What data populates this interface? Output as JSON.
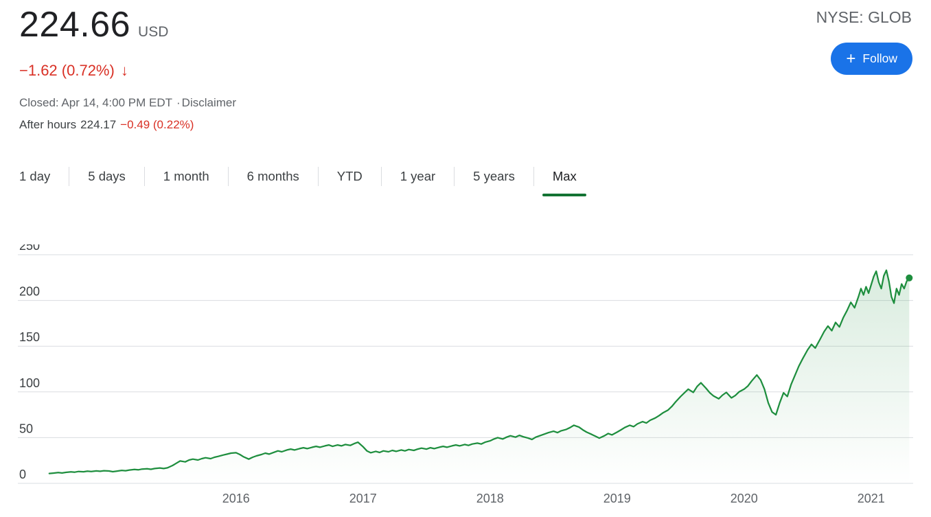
{
  "header": {
    "price": "224.66",
    "currency": "USD",
    "change": "−1.62 (0.72%)",
    "change_arrow": "↓",
    "closed_line": "Closed: Apr 14, 4:00 PM EDT",
    "disclaimer_sep": "·",
    "disclaimer": "Disclaimer",
    "after_hours_label": "After hours",
    "after_hours_price": "224.17",
    "after_hours_change": "−0.49 (0.22%)",
    "exchange": "NYSE: GLOB",
    "follow_button": {
      "icon": "+",
      "label": "Follow"
    }
  },
  "tabs": {
    "items": [
      {
        "label": "1 day",
        "active": false
      },
      {
        "label": "5 days",
        "active": false
      },
      {
        "label": "1 month",
        "active": false
      },
      {
        "label": "6 months",
        "active": false
      },
      {
        "label": "YTD",
        "active": false
      },
      {
        "label": "1 year",
        "active": false
      },
      {
        "label": "5 years",
        "active": false
      },
      {
        "label": "Max",
        "active": true
      }
    ]
  },
  "chart_data": {
    "type": "line",
    "series_name": "NYSE: GLOB price",
    "xlabel": "",
    "ylabel": "",
    "xlim": [
      2014.52,
      2021.32
    ],
    "ylim": [
      0,
      250
    ],
    "yticks": [
      0,
      50,
      100,
      150,
      200,
      250
    ],
    "xticks": [
      2016,
      2017,
      2018,
      2019,
      2020,
      2021
    ],
    "grid": true,
    "legend": false,
    "end_dot": true,
    "colors": {
      "line": "#1e8e3e",
      "grid": "#dadce0",
      "ytick_label": "#3c4043",
      "xtick_label": "#5f6368"
    },
    "points": [
      [
        2014.53,
        10.8
      ],
      [
        2014.56,
        11.2
      ],
      [
        2014.6,
        11.8
      ],
      [
        2014.63,
        11.3
      ],
      [
        2014.66,
        12.0
      ],
      [
        2014.7,
        12.6
      ],
      [
        2014.73,
        12.2
      ],
      [
        2014.76,
        13.0
      ],
      [
        2014.8,
        12.7
      ],
      [
        2014.83,
        13.3
      ],
      [
        2014.86,
        13.0
      ],
      [
        2014.9,
        13.6
      ],
      [
        2014.93,
        13.2
      ],
      [
        2014.96,
        13.8
      ],
      [
        2015.0,
        13.5
      ],
      [
        2015.03,
        12.8
      ],
      [
        2015.06,
        13.4
      ],
      [
        2015.1,
        14.2
      ],
      [
        2015.13,
        13.8
      ],
      [
        2015.16,
        14.6
      ],
      [
        2015.2,
        15.2
      ],
      [
        2015.23,
        14.8
      ],
      [
        2015.26,
        15.6
      ],
      [
        2015.3,
        16.0
      ],
      [
        2015.33,
        15.4
      ],
      [
        2015.36,
        16.2
      ],
      [
        2015.4,
        16.8
      ],
      [
        2015.43,
        16.2
      ],
      [
        2015.46,
        17.0
      ],
      [
        2015.5,
        19.5
      ],
      [
        2015.53,
        22.0
      ],
      [
        2015.56,
        24.5
      ],
      [
        2015.6,
        23.5
      ],
      [
        2015.63,
        25.5
      ],
      [
        2015.66,
        26.5
      ],
      [
        2015.7,
        25.5
      ],
      [
        2015.73,
        27.0
      ],
      [
        2015.76,
        28.0
      ],
      [
        2015.8,
        27.0
      ],
      [
        2015.83,
        28.5
      ],
      [
        2015.86,
        29.5
      ],
      [
        2015.9,
        31.0
      ],
      [
        2015.93,
        32.0
      ],
      [
        2015.96,
        33.0
      ],
      [
        2016.0,
        33.5
      ],
      [
        2016.03,
        31.5
      ],
      [
        2016.06,
        29.0
      ],
      [
        2016.1,
        26.5
      ],
      [
        2016.13,
        28.5
      ],
      [
        2016.16,
        30.0
      ],
      [
        2016.2,
        31.5
      ],
      [
        2016.23,
        33.0
      ],
      [
        2016.26,
        32.0
      ],
      [
        2016.3,
        34.0
      ],
      [
        2016.33,
        35.5
      ],
      [
        2016.36,
        34.5
      ],
      [
        2016.4,
        36.5
      ],
      [
        2016.43,
        37.5
      ],
      [
        2016.46,
        36.5
      ],
      [
        2016.5,
        38.0
      ],
      [
        2016.53,
        39.0
      ],
      [
        2016.56,
        38.0
      ],
      [
        2016.6,
        39.5
      ],
      [
        2016.63,
        40.5
      ],
      [
        2016.66,
        39.5
      ],
      [
        2016.7,
        41.0
      ],
      [
        2016.73,
        42.0
      ],
      [
        2016.76,
        40.5
      ],
      [
        2016.8,
        42.0
      ],
      [
        2016.83,
        41.0
      ],
      [
        2016.86,
        42.5
      ],
      [
        2016.9,
        41.5
      ],
      [
        2016.93,
        43.5
      ],
      [
        2016.96,
        45.0
      ],
      [
        2017.0,
        40.0
      ],
      [
        2017.03,
        35.5
      ],
      [
        2017.06,
        33.5
      ],
      [
        2017.1,
        35.0
      ],
      [
        2017.13,
        33.8
      ],
      [
        2017.16,
        35.5
      ],
      [
        2017.2,
        34.5
      ],
      [
        2017.23,
        36.0
      ],
      [
        2017.26,
        35.0
      ],
      [
        2017.3,
        36.5
      ],
      [
        2017.33,
        35.5
      ],
      [
        2017.36,
        37.0
      ],
      [
        2017.4,
        36.0
      ],
      [
        2017.43,
        37.5
      ],
      [
        2017.46,
        38.5
      ],
      [
        2017.5,
        37.5
      ],
      [
        2017.53,
        39.0
      ],
      [
        2017.56,
        38.0
      ],
      [
        2017.6,
        39.5
      ],
      [
        2017.63,
        40.5
      ],
      [
        2017.66,
        39.5
      ],
      [
        2017.7,
        41.0
      ],
      [
        2017.73,
        42.0
      ],
      [
        2017.76,
        41.0
      ],
      [
        2017.8,
        42.5
      ],
      [
        2017.83,
        41.5
      ],
      [
        2017.86,
        43.0
      ],
      [
        2017.9,
        44.0
      ],
      [
        2017.93,
        43.0
      ],
      [
        2017.96,
        45.0
      ],
      [
        2018.0,
        46.5
      ],
      [
        2018.03,
        48.5
      ],
      [
        2018.06,
        50.0
      ],
      [
        2018.1,
        48.5
      ],
      [
        2018.13,
        50.5
      ],
      [
        2018.16,
        52.0
      ],
      [
        2018.2,
        50.5
      ],
      [
        2018.23,
        52.5
      ],
      [
        2018.26,
        51.0
      ],
      [
        2018.3,
        49.5
      ],
      [
        2018.33,
        48.0
      ],
      [
        2018.36,
        50.5
      ],
      [
        2018.4,
        52.5
      ],
      [
        2018.43,
        54.0
      ],
      [
        2018.46,
        55.5
      ],
      [
        2018.5,
        57.0
      ],
      [
        2018.53,
        55.5
      ],
      [
        2018.56,
        57.5
      ],
      [
        2018.6,
        59.0
      ],
      [
        2018.63,
        61.0
      ],
      [
        2018.66,
        63.5
      ],
      [
        2018.7,
        61.5
      ],
      [
        2018.73,
        58.5
      ],
      [
        2018.76,
        56.0
      ],
      [
        2018.8,
        53.5
      ],
      [
        2018.83,
        51.5
      ],
      [
        2018.86,
        49.5
      ],
      [
        2018.9,
        52.0
      ],
      [
        2018.93,
        54.5
      ],
      [
        2018.96,
        53.0
      ],
      [
        2019.0,
        56.0
      ],
      [
        2019.03,
        58.5
      ],
      [
        2019.06,
        61.0
      ],
      [
        2019.1,
        63.5
      ],
      [
        2019.13,
        62.0
      ],
      [
        2019.16,
        65.0
      ],
      [
        2019.2,
        67.5
      ],
      [
        2019.23,
        66.0
      ],
      [
        2019.26,
        69.0
      ],
      [
        2019.3,
        71.5
      ],
      [
        2019.33,
        74.0
      ],
      [
        2019.36,
        77.0
      ],
      [
        2019.4,
        80.0
      ],
      [
        2019.43,
        84.0
      ],
      [
        2019.46,
        89.0
      ],
      [
        2019.5,
        95.0
      ],
      [
        2019.53,
        99.0
      ],
      [
        2019.56,
        103.0
      ],
      [
        2019.6,
        99.5
      ],
      [
        2019.63,
        106.0
      ],
      [
        2019.66,
        110.0
      ],
      [
        2019.7,
        104.0
      ],
      [
        2019.73,
        99.0
      ],
      [
        2019.76,
        95.5
      ],
      [
        2019.8,
        92.5
      ],
      [
        2019.83,
        96.5
      ],
      [
        2019.86,
        99.5
      ],
      [
        2019.9,
        93.5
      ],
      [
        2019.93,
        96.0
      ],
      [
        2019.96,
        100.0
      ],
      [
        2020.0,
        103.0
      ],
      [
        2020.03,
        106.5
      ],
      [
        2020.06,
        112.0
      ],
      [
        2020.1,
        118.5
      ],
      [
        2020.13,
        113.0
      ],
      [
        2020.16,
        103.0
      ],
      [
        2020.19,
        88.0
      ],
      [
        2020.22,
        78.0
      ],
      [
        2020.25,
        75.0
      ],
      [
        2020.28,
        88.0
      ],
      [
        2020.31,
        99.0
      ],
      [
        2020.34,
        95.0
      ],
      [
        2020.37,
        108.0
      ],
      [
        2020.4,
        118.0
      ],
      [
        2020.43,
        128.0
      ],
      [
        2020.46,
        136.0
      ],
      [
        2020.5,
        146.0
      ],
      [
        2020.53,
        152.0
      ],
      [
        2020.56,
        148.0
      ],
      [
        2020.6,
        158.0
      ],
      [
        2020.63,
        166.0
      ],
      [
        2020.66,
        172.0
      ],
      [
        2020.69,
        167.0
      ],
      [
        2020.72,
        176.0
      ],
      [
        2020.75,
        171.0
      ],
      [
        2020.78,
        181.0
      ],
      [
        2020.81,
        189.0
      ],
      [
        2020.84,
        198.0
      ],
      [
        2020.87,
        192.0
      ],
      [
        2020.9,
        204.0
      ],
      [
        2020.92,
        213.0
      ],
      [
        2020.94,
        206.0
      ],
      [
        2020.96,
        215.0
      ],
      [
        2020.98,
        208.0
      ],
      [
        2021.0,
        217.0
      ],
      [
        2021.02,
        226.0
      ],
      [
        2021.04,
        232.0
      ],
      [
        2021.06,
        220.0
      ],
      [
        2021.08,
        213.0
      ],
      [
        2021.1,
        227.0
      ],
      [
        2021.12,
        233.0
      ],
      [
        2021.14,
        221.0
      ],
      [
        2021.16,
        204.0
      ],
      [
        2021.18,
        197.0
      ],
      [
        2021.2,
        213.0
      ],
      [
        2021.22,
        206.0
      ],
      [
        2021.24,
        218.0
      ],
      [
        2021.26,
        213.0
      ],
      [
        2021.28,
        221.0
      ],
      [
        2021.3,
        224.66
      ]
    ]
  }
}
